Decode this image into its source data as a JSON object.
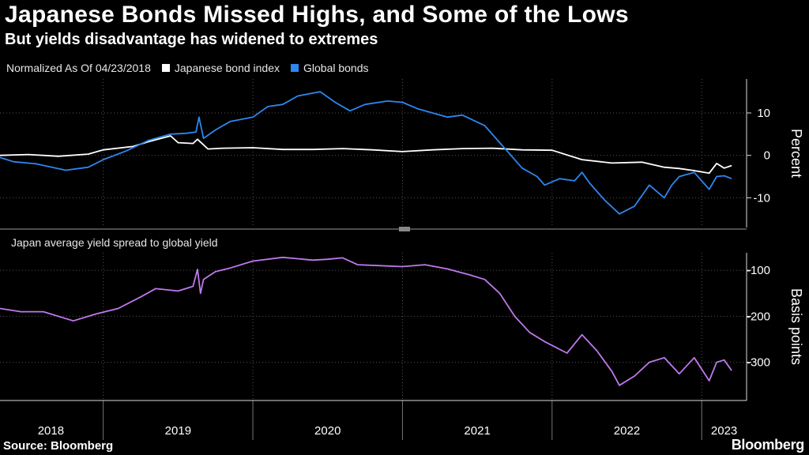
{
  "title": "Japanese Bonds Missed Highs, and Some of the Lows",
  "subtitle": "But yields disadvantage has widened to extremes",
  "source": "Source: Bloomberg",
  "brand": "Bloomberg",
  "chart_data": [
    {
      "type": "line",
      "panel": "top",
      "legend_prefix": "Normalized As Of 04/23/2018",
      "ylabel": "Percent",
      "ylim": [
        -17,
        18
      ],
      "yticks": [
        10,
        0,
        -10
      ],
      "ytick_labels": [
        "10",
        "0",
        "-10"
      ],
      "xlim": [
        2018.31,
        2023.3
      ],
      "series": [
        {
          "name": "Japanese bond index",
          "color": "#ffffff",
          "x": [
            2018.31,
            2018.5,
            2018.7,
            2018.9,
            2019.0,
            2019.2,
            2019.3,
            2019.45,
            2019.5,
            2019.6,
            2019.63,
            2019.7,
            2019.8,
            2020.0,
            2020.2,
            2020.4,
            2020.6,
            2020.8,
            2021.0,
            2021.2,
            2021.4,
            2021.6,
            2021.8,
            2022.0,
            2022.2,
            2022.4,
            2022.6,
            2022.75,
            2022.85,
            2022.95,
            2023.05,
            2023.1,
            2023.15,
            2023.2
          ],
          "values": [
            0.0,
            0.2,
            -0.2,
            0.3,
            1.3,
            2.1,
            3.2,
            4.6,
            3.0,
            2.8,
            3.8,
            1.5,
            1.7,
            1.8,
            1.4,
            1.4,
            1.6,
            1.3,
            0.9,
            1.3,
            1.6,
            1.7,
            1.3,
            1.2,
            -1.0,
            -1.8,
            -1.6,
            -2.8,
            -3.1,
            -3.6,
            -4.2,
            -1.9,
            -3.0,
            -2.4
          ]
        },
        {
          "name": "Global bonds",
          "color": "#2e86f0",
          "x": [
            2018.31,
            2018.4,
            2018.55,
            2018.75,
            2018.9,
            2019.0,
            2019.15,
            2019.3,
            2019.45,
            2019.55,
            2019.62,
            2019.64,
            2019.67,
            2019.75,
            2019.85,
            2020.0,
            2020.1,
            2020.2,
            2020.3,
            2020.45,
            2020.55,
            2020.65,
            2020.75,
            2020.9,
            2021.0,
            2021.1,
            2021.3,
            2021.4,
            2021.55,
            2021.7,
            2021.8,
            2021.9,
            2021.95,
            2022.05,
            2022.15,
            2022.2,
            2022.25,
            2022.35,
            2022.45,
            2022.55,
            2022.65,
            2022.75,
            2022.8,
            2022.85,
            2022.95,
            2023.05,
            2023.1,
            2023.15,
            2023.2
          ],
          "values": [
            -0.5,
            -1.5,
            -2.0,
            -3.5,
            -2.8,
            -1.0,
            1.0,
            3.5,
            5.0,
            5.2,
            5.5,
            9.0,
            4.0,
            6.0,
            8.0,
            9.0,
            11.5,
            12.0,
            14.0,
            15.0,
            12.5,
            10.5,
            12.0,
            12.8,
            12.5,
            11.0,
            9.0,
            9.5,
            7.0,
            1.0,
            -3.0,
            -5.0,
            -7.0,
            -5.5,
            -6.0,
            -4.0,
            -6.5,
            -10.5,
            -13.8,
            -12.0,
            -7.0,
            -10.0,
            -7.0,
            -5.0,
            -4.0,
            -8.0,
            -5.0,
            -4.8,
            -5.5
          ]
        }
      ]
    },
    {
      "type": "line",
      "panel": "bottom",
      "ylabel": "Basis points",
      "ylim": [
        -383,
        -62
      ],
      "yticks": [
        -100,
        -200,
        -300
      ],
      "ytick_labels": [
        "-100",
        "-200",
        "-300"
      ],
      "xlim": [
        2018.31,
        2023.3
      ],
      "series": [
        {
          "name": "Japan average yield spread to global yield",
          "color": "#c078ee",
          "x": [
            2018.31,
            2018.45,
            2018.6,
            2018.8,
            2018.95,
            2019.1,
            2019.25,
            2019.35,
            2019.5,
            2019.6,
            2019.63,
            2019.65,
            2019.67,
            2019.75,
            2019.85,
            2020.0,
            2020.2,
            2020.4,
            2020.5,
            2020.6,
            2020.7,
            2020.85,
            2021.0,
            2021.15,
            2021.3,
            2021.45,
            2021.55,
            2021.65,
            2021.75,
            2021.85,
            2021.95,
            2022.1,
            2022.15,
            2022.2,
            2022.3,
            2022.4,
            2022.45,
            2022.55,
            2022.65,
            2022.75,
            2022.85,
            2022.95,
            2023.05,
            2023.1,
            2023.15,
            2023.2
          ],
          "values": [
            -183,
            -190,
            -190,
            -210,
            -195,
            -183,
            -158,
            -140,
            -145,
            -135,
            -98,
            -150,
            -120,
            -103,
            -95,
            -80,
            -72,
            -78,
            -76,
            -73,
            -88,
            -90,
            -92,
            -88,
            -97,
            -110,
            -120,
            -150,
            -200,
            -235,
            -255,
            -280,
            -260,
            -240,
            -275,
            -320,
            -350,
            -330,
            -300,
            -290,
            -325,
            -290,
            -340,
            -300,
            -295,
            -318
          ]
        }
      ]
    }
  ],
  "x_axis": {
    "year_labels": [
      "2018",
      "2019",
      "2020",
      "2021",
      "2022",
      "2023"
    ],
    "year_label_positions": [
      2018.65,
      2019.5,
      2020.5,
      2021.5,
      2022.5,
      2023.15
    ],
    "year_boundaries": [
      2019.0,
      2020.0,
      2021.0,
      2022.0,
      2023.0
    ]
  }
}
